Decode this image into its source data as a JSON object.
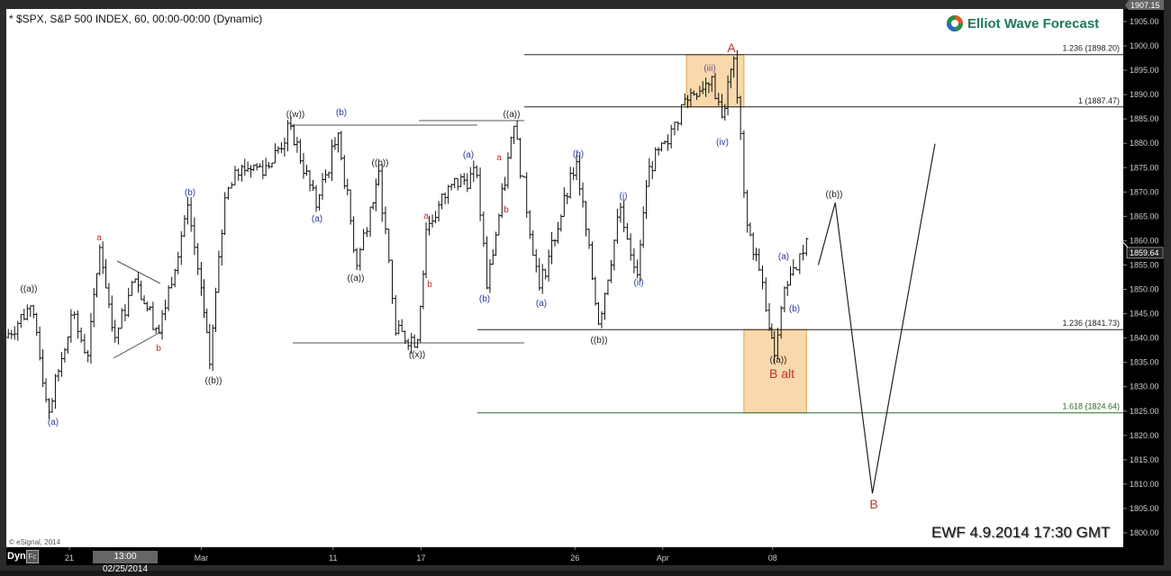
{
  "window": {
    "title": "* $SPX, S&P 500 INDEX, 60, 00:00-00:00 (Dynamic)"
  },
  "logo": {
    "text": "Elliot Wave Forecast"
  },
  "copyright": "© eSignal, 2014",
  "stamp": "EWF 4.9.2014  17:30 GMT",
  "footer": {
    "mode": "Dyn",
    "fc_button": "Fc",
    "cursor_time": "13:00 02/25/2014"
  },
  "colors": {
    "red": "#c0302a",
    "blue": "#2a3a9a",
    "purple": "#7a4a9a",
    "black": "#222222",
    "green_line": "#2a6a2a",
    "box_fill": "#f9d9ac",
    "box_border": "#e0a04a"
  },
  "chart_data": {
    "type": "bar",
    "subtype": "ohlc-hourly",
    "symbol": "$SPX",
    "ylim": [
      1797,
      1908
    ],
    "y_ticks": [
      "1800.00",
      "1805.00",
      "1810.00",
      "1815.00",
      "1820.00",
      "1825.00",
      "1830.00",
      "1835.00",
      "1840.00",
      "1845.00",
      "1850.00",
      "1855.00",
      "1860.00",
      "1865.00",
      "1870.00",
      "1875.00",
      "1880.00",
      "1885.00",
      "1890.00",
      "1895.00",
      "1900.00",
      "1905.00"
    ],
    "x_ticks": [
      {
        "label": "21",
        "date": "2014-02-21"
      },
      {
        "label": "Mar",
        "date": "2014-03-03"
      },
      {
        "label": "11",
        "date": "2014-03-11"
      },
      {
        "label": "17",
        "date": "2014-03-17"
      },
      {
        "label": "26",
        "date": "2014-03-26"
      },
      {
        "label": "Apr",
        "date": "2014-04-01"
      },
      {
        "label": "08",
        "date": "2014-04-08"
      }
    ],
    "last_price": "1859.64",
    "high_marker": "1907.15",
    "price_pivots": [
      [
        "2014-02-18 10:00",
        1840.1
      ],
      [
        "2014-02-19 11:00",
        1846.6
      ],
      [
        "2014-02-20 10:00",
        1824.8
      ],
      [
        "2014-02-21 10:00",
        1844.7
      ],
      [
        "2014-02-21 15:00",
        1836.4
      ],
      [
        "2014-02-24 12:00",
        1858.6
      ],
      [
        "2014-02-25 10:00",
        1840.1
      ],
      [
        "2014-02-25 16:00",
        1852.1
      ],
      [
        "2014-02-27 10:00",
        1841.0
      ],
      [
        "2014-02-28 12:00",
        1867.3
      ],
      [
        "2014-02-28 16:00",
        1850.3
      ],
      [
        "2014-03-03 12:00",
        1834.6
      ],
      [
        "2014-03-04 10:00",
        1868.8
      ],
      [
        "2014-03-04 15:00",
        1875.2
      ],
      [
        "2014-03-06 10:00",
        1875.2
      ],
      [
        "2014-03-07 10:00",
        1883.5
      ],
      [
        "2014-03-10 11:00",
        1866.9
      ],
      [
        "2014-03-11 11:00",
        1882.1
      ],
      [
        "2014-03-12 10:00",
        1854.9
      ],
      [
        "2014-03-12 14:00",
        1866.9
      ],
      [
        "2014-03-13 10:00",
        1874.3
      ],
      [
        "2014-03-13 15:00",
        1841.0
      ],
      [
        "2014-03-14 15:00",
        1839.6
      ],
      [
        "2014-03-17 11:00",
        1862.3
      ],
      [
        "2014-03-18 12:00",
        1871.5
      ],
      [
        "2014-03-19 13:00",
        1873.4
      ],
      [
        "2014-03-19 16:00",
        1850.3
      ],
      [
        "2014-03-21 11:00",
        1883.5
      ],
      [
        "2014-03-24 12:00",
        1850.3
      ],
      [
        "2014-03-26 10:00",
        1876.2
      ],
      [
        "2014-03-27 10:00",
        1842.9
      ],
      [
        "2014-03-28 10:00",
        1866.9
      ],
      [
        "2014-03-28 15:00",
        1853.0
      ],
      [
        "2014-03-31 12:00",
        1875.2
      ],
      [
        "2014-04-01 11:00",
        1879.9
      ],
      [
        "2014-04-01 16:00",
        1889.1
      ],
      [
        "2014-04-03 11:00",
        1893.7
      ],
      [
        "2014-04-03 14:00",
        1885.4
      ],
      [
        "2014-04-04 11:00",
        1897.4
      ],
      [
        "2014-04-04 15:00",
        1863.2
      ],
      [
        "2014-04-07 12:00",
        1854.0
      ],
      [
        "2014-04-07 15:00",
        1842.0
      ],
      [
        "2014-04-08 10:00",
        1836.4
      ],
      [
        "2014-04-08 13:00",
        1850.3
      ],
      [
        "2014-04-09 10:00",
        1854.0
      ],
      [
        "2014-04-09 13:00",
        1860.4
      ]
    ],
    "projection_path": [
      [
        "2014-04-10 10:00",
        1855.0
      ],
      [
        "2014-04-10 15:00",
        1867.8
      ],
      [
        "2014-04-14 13:00",
        1808.1
      ],
      [
        "2014-04-17 12:00",
        1879.9
      ]
    ],
    "fib_levels": [
      {
        "label": "1.236 (1898.20)",
        "price": 1898.2,
        "color": "#222222"
      },
      {
        "label": "1 (1887.47)",
        "price": 1887.47,
        "color": "#222222"
      },
      {
        "label": "1.236 (1841.73)",
        "price": 1841.73,
        "color": "#222222"
      },
      {
        "label": "1.618 (1824.64)",
        "price": 1824.64,
        "color": "#2a6a2a"
      }
    ],
    "zones": [
      {
        "from": 1887.47,
        "to": 1898.2,
        "start": "2014-04-02 10:00",
        "end": "2014-04-04 14:00"
      },
      {
        "from": 1824.64,
        "to": 1841.73,
        "start": "2014-04-04 14:00",
        "end": "2014-04-09 13:00"
      }
    ],
    "annotations": [
      {
        "text": "((a))",
        "color": "black"
      },
      {
        "text": "(a)",
        "color": "blue"
      },
      {
        "text": "a",
        "color": "red"
      },
      {
        "text": "(b)",
        "color": "blue"
      },
      {
        "text": "b",
        "color": "red"
      },
      {
        "text": "((b))",
        "color": "black"
      },
      {
        "text": "((w))",
        "color": "black"
      },
      {
        "text": "(b)",
        "color": "blue"
      },
      {
        "text": "(a)",
        "color": "blue"
      },
      {
        "text": "((b))",
        "color": "black"
      },
      {
        "text": "((a))",
        "color": "black"
      },
      {
        "text": "a",
        "color": "red"
      },
      {
        "text": "b",
        "color": "red"
      },
      {
        "text": "((x))",
        "color": "black"
      },
      {
        "text": "(a)",
        "color": "blue"
      },
      {
        "text": "a",
        "color": "red"
      },
      {
        "text": "b",
        "color": "red"
      },
      {
        "text": "(b)",
        "color": "blue"
      },
      {
        "text": "((a))",
        "color": "black"
      },
      {
        "text": "(b)",
        "color": "blue"
      },
      {
        "text": "(a)",
        "color": "blue"
      },
      {
        "text": "((b))",
        "color": "black"
      },
      {
        "text": "(i)",
        "color": "blue"
      },
      {
        "text": "(ii)",
        "color": "blue"
      },
      {
        "text": "(iii)",
        "color": "purple"
      },
      {
        "text": "(iv)",
        "color": "blue"
      },
      {
        "text": "A",
        "color": "red"
      },
      {
        "text": "(a)",
        "color": "blue"
      },
      {
        "text": "(b)",
        "color": "blue"
      },
      {
        "text": "((a))",
        "color": "black"
      },
      {
        "text": "B  alt",
        "color": "red"
      },
      {
        "text": "((b))",
        "color": "black"
      },
      {
        "text": "B",
        "color": "red"
      }
    ]
  }
}
